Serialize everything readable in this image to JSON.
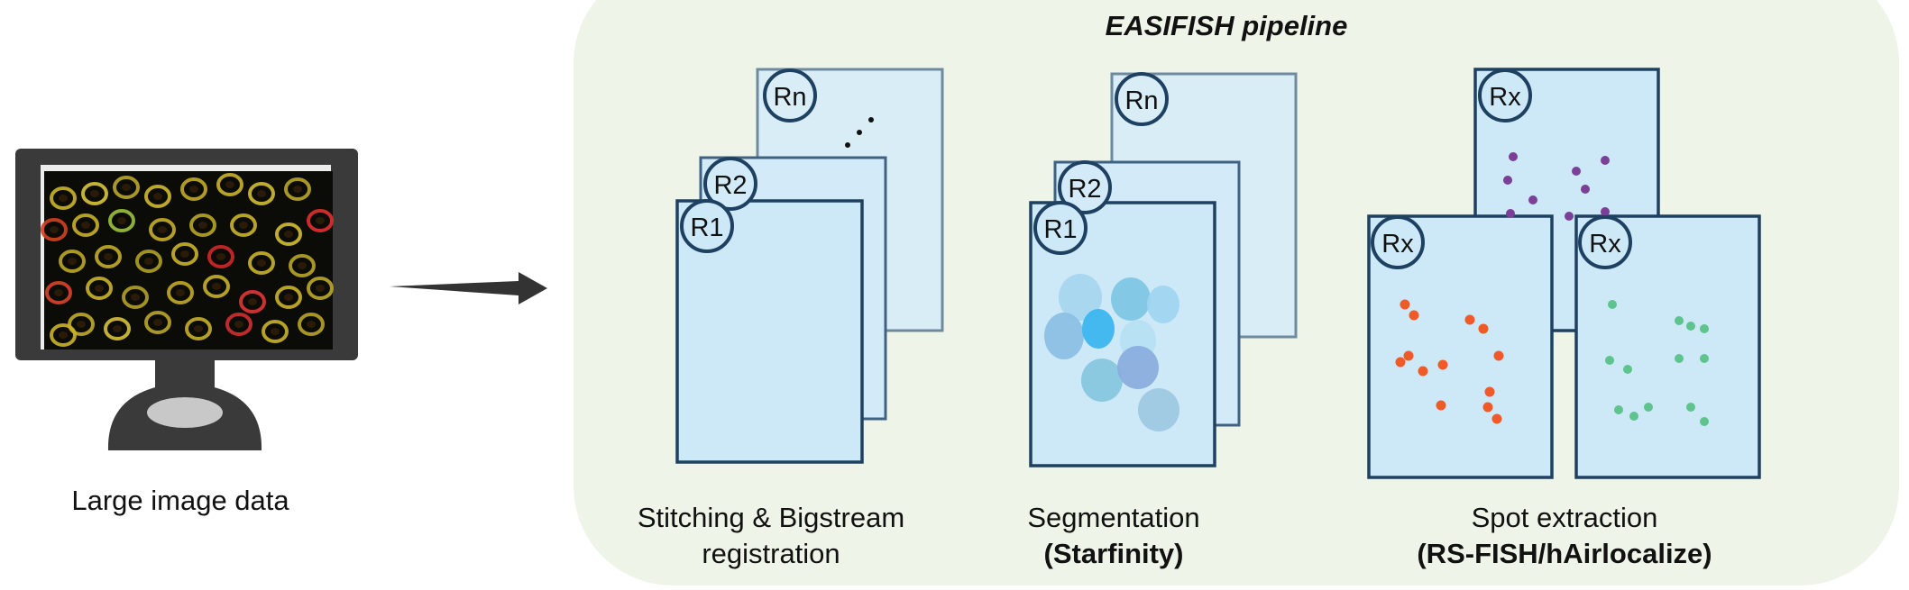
{
  "input": {
    "label": "Large image data"
  },
  "pipeline": {
    "title": "EASIFISH pipeline",
    "steps": [
      {
        "caption_line1": "Stitching & Bigstream",
        "caption_line2": "registration",
        "rounds": [
          "R1",
          "R2",
          "Rn"
        ],
        "ellipsis": "..."
      },
      {
        "caption_line1": "Segmentation",
        "caption_line2": "(Starfinity)",
        "rounds": [
          "R1",
          "R2",
          "Rn"
        ],
        "cell_count": 10
      },
      {
        "caption_line1": "Spot extraction",
        "caption_line2": "(RS-FISH/hAirlocalize)",
        "rounds": [
          "Rx",
          "Rx",
          "Rx"
        ],
        "spot_colors": [
          "#7b3f98",
          "#f05a28",
          "#5cc48c"
        ]
      }
    ]
  },
  "colors": {
    "panel_bg": "#eef5e8",
    "frame_border": "#1f4161",
    "frame_fill": "#cde8f7",
    "monitor": "#3a3a3a",
    "arrow": "#333333"
  }
}
